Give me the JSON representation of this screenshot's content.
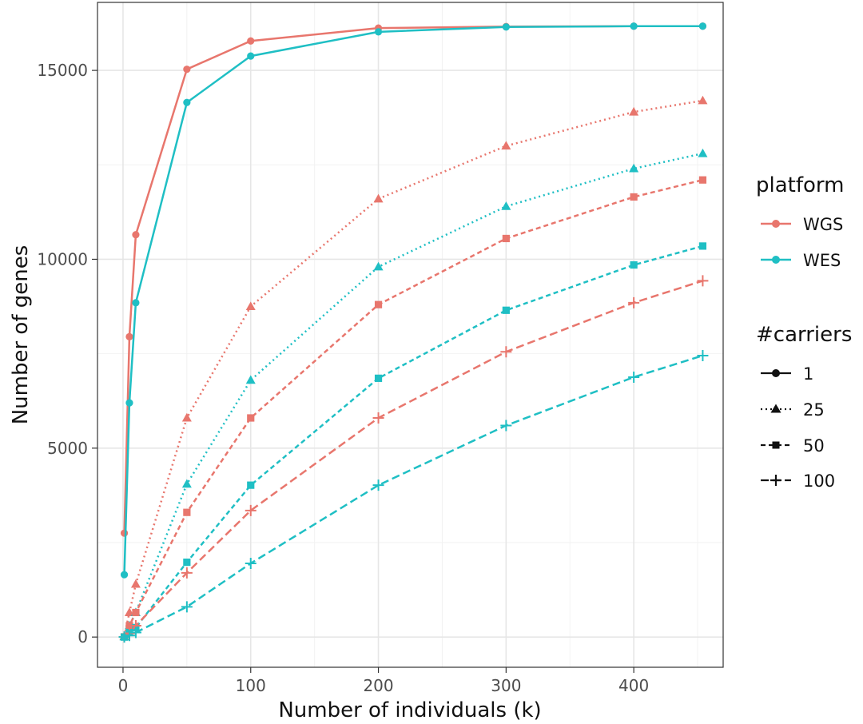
{
  "chart_data": {
    "type": "line",
    "title": "",
    "xlabel": "Number of individuals (k)",
    "ylabel": "Number of genes",
    "xlim": [
      -20,
      470
    ],
    "ylim": [
      -800,
      16800
    ],
    "x_ticks": [
      0,
      100,
      200,
      300,
      400
    ],
    "y_ticks": [
      0,
      5000,
      10000,
      15000
    ],
    "grid": true,
    "x": [
      1,
      5,
      10,
      50,
      100,
      200,
      300,
      400,
      454
    ],
    "colors": {
      "WGS": "#e8766d",
      "WES": "#1fbfc4"
    },
    "legend": {
      "platform_title": "platform",
      "platform_items": [
        "WGS",
        "WES"
      ],
      "carriers_title": "#carriers",
      "carrier_items": [
        {
          "label": "1",
          "marker": "circle",
          "dash": "solid"
        },
        {
          "label": "25",
          "marker": "triangle",
          "dash": "dotted"
        },
        {
          "label": "50",
          "marker": "square",
          "dash": "dashed"
        },
        {
          "label": "100",
          "marker": "plus",
          "dash": "longdash"
        }
      ]
    },
    "series": [
      {
        "name": "WGS, 1",
        "platform": "WGS",
        "carriers": "1",
        "marker": "circle",
        "dash": "solid",
        "values": [
          2750,
          7950,
          10650,
          15030,
          15780,
          16120,
          16160,
          16170,
          16170
        ]
      },
      {
        "name": "WES, 1",
        "platform": "WES",
        "carriers": "1",
        "marker": "circle",
        "dash": "solid",
        "values": [
          1650,
          6200,
          8850,
          14150,
          15380,
          16020,
          16150,
          16170,
          16170
        ]
      },
      {
        "name": "WGS, 25",
        "platform": "WGS",
        "carriers": "25",
        "marker": "triangle",
        "dash": "dotted",
        "values": [
          20,
          650,
          1400,
          5800,
          8750,
          11600,
          13000,
          13900,
          14200
        ]
      },
      {
        "name": "WES, 25",
        "platform": "WES",
        "carriers": "25",
        "marker": "triangle",
        "dash": "dotted",
        "values": [
          10,
          300,
          650,
          4050,
          6800,
          9800,
          11400,
          12400,
          12800
        ]
      },
      {
        "name": "WGS, 50",
        "platform": "WGS",
        "carriers": "50",
        "marker": "square",
        "dash": "dashed",
        "values": [
          5,
          300,
          650,
          3300,
          5800,
          8800,
          10550,
          11650,
          12100
        ]
      },
      {
        "name": "WES, 50",
        "platform": "WES",
        "carriers": "50",
        "marker": "square",
        "dash": "dashed",
        "values": [
          0,
          120,
          250,
          1980,
          4020,
          6850,
          8650,
          9850,
          10350
        ]
      },
      {
        "name": "WGS, 100",
        "platform": "WGS",
        "carriers": "100",
        "marker": "plus",
        "dash": "longdash",
        "values": [
          0,
          100,
          300,
          1700,
          3350,
          5800,
          7550,
          8850,
          9430
        ]
      },
      {
        "name": "WES, 100",
        "platform": "WES",
        "carriers": "100",
        "marker": "plus",
        "dash": "longdash",
        "values": [
          0,
          40,
          120,
          800,
          1950,
          4020,
          5600,
          6880,
          7450
        ]
      }
    ]
  }
}
